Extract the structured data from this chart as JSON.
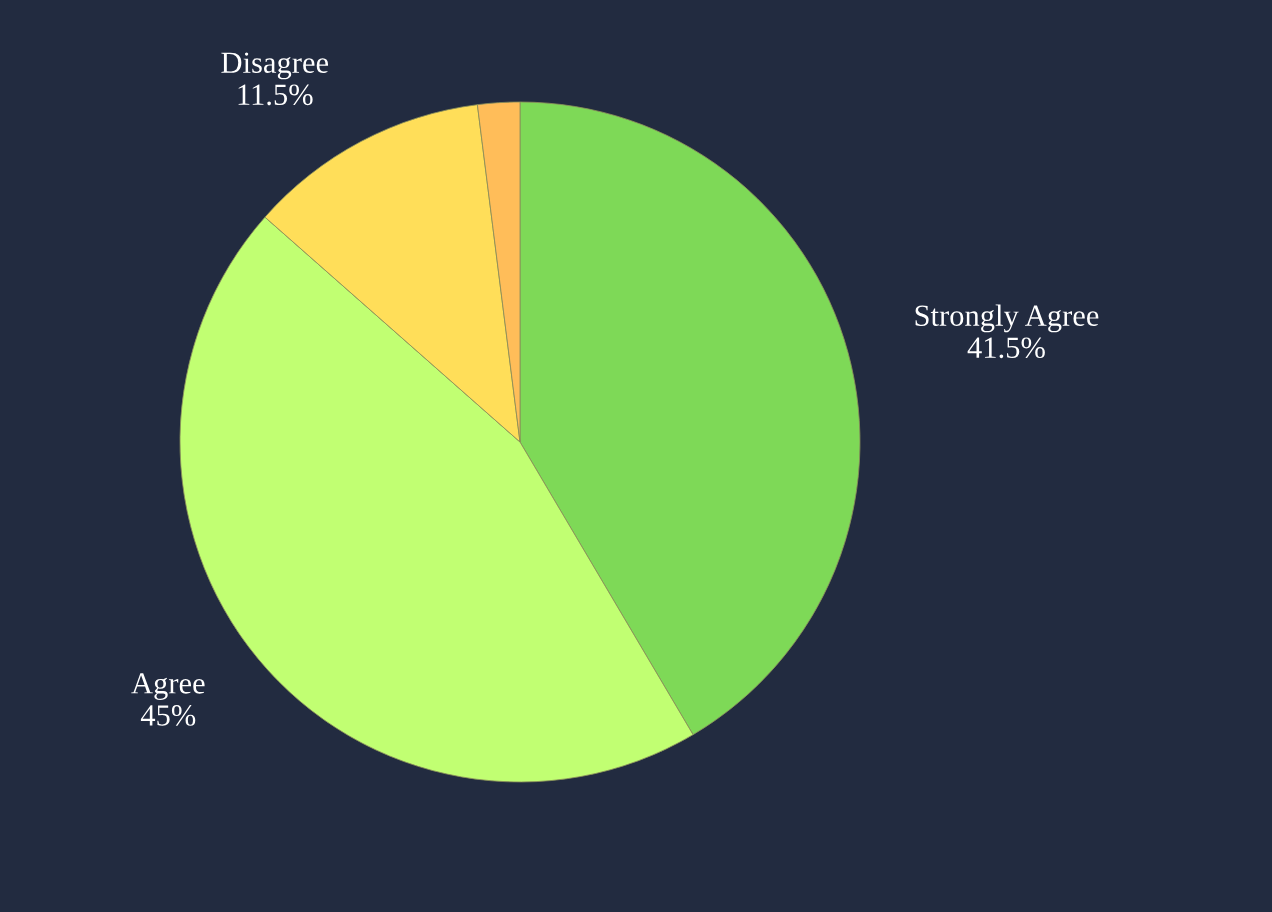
{
  "chart_data": {
    "type": "pie",
    "categories": [
      "Strongly Agree",
      "Agree",
      "Disagree",
      null
    ],
    "values": [
      41.5,
      45,
      11.5,
      2
    ],
    "colors": [
      "#7ed957",
      "#c1ff72",
      "#ffde59",
      "#ffbd59"
    ],
    "value_labels": [
      "41.5%",
      "45%",
      "11.5%",
      null
    ]
  }
}
